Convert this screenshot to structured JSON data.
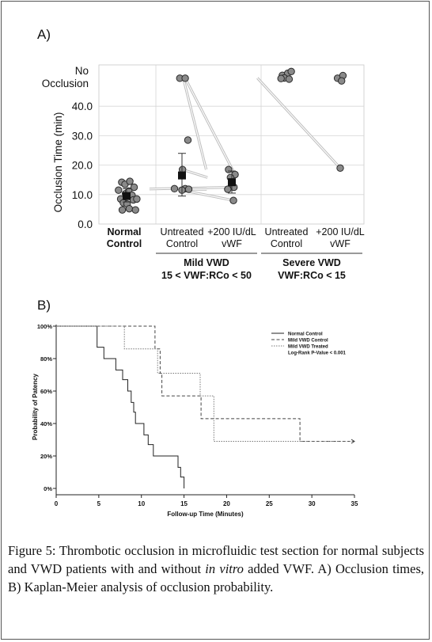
{
  "panel_a_label": "A)",
  "panel_b_label": "B)",
  "caption": {
    "label": "Figure 5:",
    "text_1": " Thrombotic occlusion in microfluidic test section for normal subjects and VWD patients with and without ",
    "italic": "in vitro",
    "text_2": " added VWF. A) Occlusion times, B) Kaplan-Meier analysis of occlusion probability."
  },
  "chart_data": [
    {
      "type": "scatter",
      "title": "",
      "ylabel": "Occlusion Time (min)",
      "ylim": [
        0,
        50
      ],
      "ytick_values": [
        0,
        10,
        20,
        30,
        40
      ],
      "ytick_labels": [
        "0.0",
        "10.0",
        "20.0",
        "30.0",
        "40.0"
      ],
      "top_label": [
        "No",
        "Occlusion"
      ],
      "categories": [
        {
          "label": [
            "Normal",
            "Control"
          ],
          "bold": true
        },
        {
          "label": [
            "Untreated",
            "Control"
          ],
          "bold": false
        },
        {
          "label": [
            "+200 IU/dL",
            "vWF"
          ],
          "bold": false
        },
        {
          "label": [
            "Untreated",
            "Control"
          ],
          "bold": false
        },
        {
          "label": [
            "+200 IU/dL",
            "vWF"
          ],
          "bold": false
        }
      ],
      "groups": [
        {
          "name": [
            "Mild VWD",
            "15 < VWF:RCo < 50"
          ],
          "categories": [
            1,
            2
          ]
        },
        {
          "name": [
            "Severe VWD",
            "VWF:RCo < 15"
          ],
          "categories": [
            3,
            4
          ]
        }
      ],
      "points": {
        "normal_control": [
          [
            -0.3,
            11.5
          ],
          [
            -0.18,
            14.2
          ],
          [
            -0.06,
            13.5
          ],
          [
            0.12,
            14.5
          ],
          [
            0.28,
            12.5
          ],
          [
            -0.22,
            8.5
          ],
          [
            -0.04,
            10.3
          ],
          [
            0.08,
            11.2
          ],
          [
            0.2,
            9.8
          ],
          [
            -0.12,
            7.2
          ],
          [
            0.02,
            6.8
          ],
          [
            0.25,
            8.2
          ],
          [
            0.38,
            8.5
          ],
          [
            -0.16,
            4.8
          ],
          [
            0.1,
            5.2
          ],
          [
            0.33,
            4.8
          ]
        ],
        "mild_untreated": [
          [
            -0.08,
            49.5
          ],
          [
            0.12,
            49.5
          ],
          [
            0.22,
            28.5
          ],
          [
            -0.28,
            12
          ],
          [
            0.02,
            18.5
          ],
          [
            0.12,
            12
          ],
          [
            0.25,
            11.8
          ],
          [
            0.0,
            11.5
          ]
        ],
        "mild_treated": [
          [
            -0.12,
            18.5
          ],
          [
            0.12,
            16.8
          ],
          [
            -0.05,
            15.8
          ],
          [
            0.08,
            12.5
          ],
          [
            -0.15,
            11.8
          ],
          [
            0.06,
            8
          ]
        ],
        "severe_untreated": [
          [
            -0.15,
            50.5
          ],
          [
            0.05,
            51.2
          ],
          [
            0.18,
            51.8
          ],
          [
            -0.08,
            49.6
          ],
          [
            0.1,
            49.2
          ],
          [
            -0.2,
            49.4
          ]
        ],
        "severe_treated": [
          [
            -0.1,
            49.5
          ],
          [
            0.1,
            50.4
          ],
          [
            0.05,
            48.6
          ],
          [
            0.0,
            19.0
          ]
        ]
      },
      "paired_lines": [
        [
          [
            1.05,
            49.5
          ],
          [
            1.9,
            18.5
          ]
        ],
        [
          [
            1.12,
            49.5
          ],
          [
            2.12,
            16.8
          ]
        ],
        [
          [
            1.02,
            18.5
          ],
          [
            1.95,
            15.8
          ]
        ],
        [
          [
            0.85,
            11.9
          ],
          [
            2.08,
            12.5
          ]
        ],
        [
          [
            1.22,
            11.8
          ],
          [
            1.92,
            11.8
          ]
        ],
        [
          [
            1.0,
            11.5
          ],
          [
            2.06,
            8.0
          ]
        ],
        [
          [
            2.95,
            49.6
          ],
          [
            4.0,
            19.0
          ]
        ]
      ],
      "means": [
        {
          "category": 0,
          "mean": 9.5,
          "low": 7.5,
          "high": 12
        },
        {
          "category": 1,
          "mean": 16.5,
          "low": 9.5,
          "high": 24
        },
        {
          "category": 2,
          "mean": 14.2,
          "low": 10.5,
          "high": 18
        }
      ]
    },
    {
      "type": "line",
      "subtype": "kaplan-meier",
      "xlabel": "Follow-up Time (Minutes)",
      "ylabel": "Probability of Patency",
      "xlim": [
        0,
        35
      ],
      "ylim": [
        0,
        100
      ],
      "x_ticks": [
        "0",
        "5",
        "10",
        "15",
        "20",
        "25",
        "30",
        "35"
      ],
      "y_ticks": [
        "0%",
        "20%",
        "40%",
        "60%",
        "80%",
        "100%"
      ],
      "legend_position": "top-right",
      "annotation": "Log-Rank P-Value < 0.001",
      "series": [
        {
          "name": "Normal Control",
          "style": "solid",
          "color": "#222222",
          "steps": [
            [
              0,
              100
            ],
            [
              4.8,
              100
            ],
            [
              4.8,
              87
            ],
            [
              5.6,
              87
            ],
            [
              5.6,
              80
            ],
            [
              7.0,
              80
            ],
            [
              7.0,
              73
            ],
            [
              7.8,
              73
            ],
            [
              7.8,
              67
            ],
            [
              8.4,
              67
            ],
            [
              8.4,
              60
            ],
            [
              8.8,
              60
            ],
            [
              8.8,
              53
            ],
            [
              9.1,
              53
            ],
            [
              9.1,
              47
            ],
            [
              9.3,
              47
            ],
            [
              9.3,
              40
            ],
            [
              10.3,
              40
            ],
            [
              10.3,
              33
            ],
            [
              10.8,
              33
            ],
            [
              10.8,
              27
            ],
            [
              11.4,
              27
            ],
            [
              11.4,
              20
            ],
            [
              14.3,
              20
            ],
            [
              14.3,
              13
            ],
            [
              14.6,
              13
            ],
            [
              14.6,
              7
            ],
            [
              15.0,
              7
            ],
            [
              15.0,
              0
            ]
          ]
        },
        {
          "name": "Mild VWD Control",
          "style": "dashed",
          "color": "#444444",
          "steps": [
            [
              0,
              100
            ],
            [
              11.6,
              100
            ],
            [
              11.6,
              86
            ],
            [
              12.2,
              86
            ],
            [
              12.2,
              71
            ],
            [
              12.4,
              71
            ],
            [
              12.4,
              57
            ],
            [
              17.0,
              57
            ],
            [
              17.0,
              43
            ],
            [
              28.6,
              43
            ],
            [
              28.6,
              29
            ],
            [
              35,
              29
            ]
          ]
        },
        {
          "name": "Mild VWD Treated",
          "style": "dotted",
          "color": "#777777",
          "steps": [
            [
              0,
              100
            ],
            [
              8.0,
              100
            ],
            [
              8.0,
              86
            ],
            [
              11.9,
              86
            ],
            [
              11.9,
              71
            ],
            [
              16.9,
              71
            ],
            [
              16.9,
              57
            ],
            [
              18.5,
              57
            ],
            [
              18.5,
              29
            ],
            [
              35,
              29
            ]
          ]
        }
      ]
    }
  ]
}
